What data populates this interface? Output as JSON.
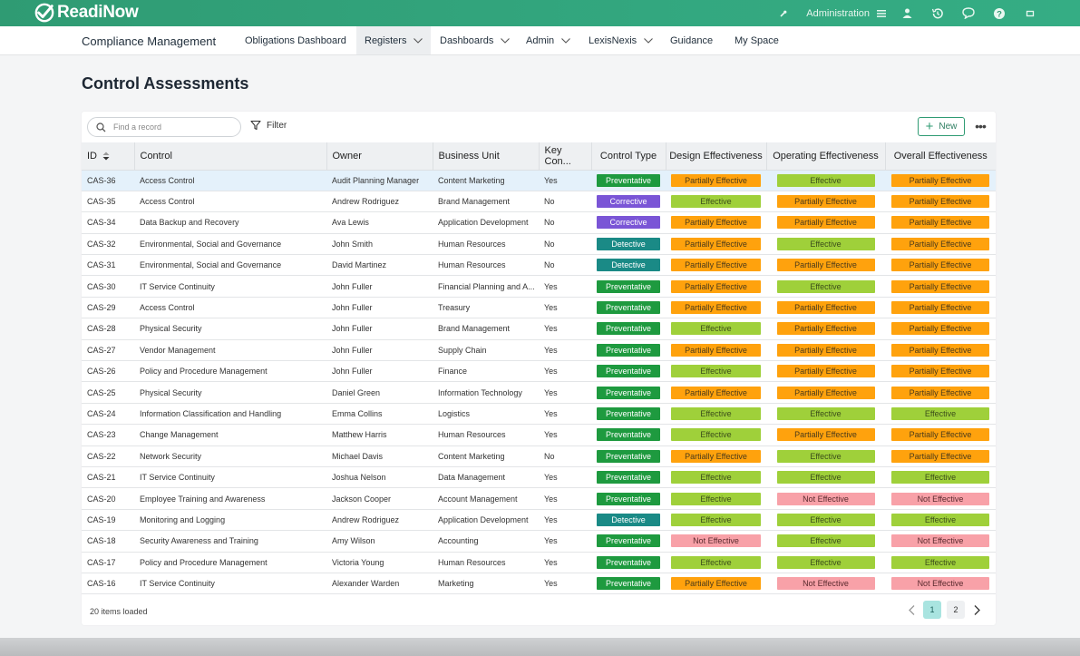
{
  "app": {
    "logo_text": "ReadiNow",
    "admin_label": "Administration",
    "colors": {
      "brand": "#2f9b73",
      "preventative": "#1e9a3f",
      "corrective": "#7a55d6",
      "detective": "#1a8a86",
      "partially_effective": "#ffa20d",
      "effective": "#9fd03a",
      "not_effective": "#f8a1a8"
    }
  },
  "nav": {
    "app_title": "Compliance Management",
    "items": [
      {
        "label": "Obligations Dashboard",
        "dropdown": false
      },
      {
        "label": "Registers",
        "dropdown": true,
        "active": true
      },
      {
        "label": "Dashboards",
        "dropdown": true
      },
      {
        "label": "Admin",
        "dropdown": true
      },
      {
        "label": "LexisNexis",
        "dropdown": true
      },
      {
        "label": "Guidance",
        "dropdown": false
      },
      {
        "label": "My Space",
        "dropdown": false
      }
    ]
  },
  "page": {
    "title": "Control Assessments",
    "search_placeholder": "Find a record",
    "filter_label": "Filter",
    "new_label": "New",
    "more_label": "•••",
    "footer_text": "20 items loaded",
    "pages": [
      "1",
      "2"
    ],
    "current_page": "1"
  },
  "table": {
    "columns": [
      "ID",
      "Control",
      "Owner",
      "Business Unit",
      "Key Con...",
      "Control Type",
      "Design Effectiveness",
      "Operating Effectiveness",
      "Overall Effectiveness"
    ],
    "rows": [
      [
        "CAS-36",
        "Access Control",
        "Audit Planning Manager",
        "Content Marketing",
        "Yes",
        "Preventative",
        "Partially Effective",
        "Effective",
        "Partially Effective"
      ],
      [
        "CAS-35",
        "Access Control",
        "Andrew Rodriguez",
        "Brand Management",
        "No",
        "Corrective",
        "Effective",
        "Partially Effective",
        "Partially Effective"
      ],
      [
        "CAS-34",
        "Data Backup and Recovery",
        "Ava Lewis",
        "Application Development",
        "No",
        "Corrective",
        "Partially Effective",
        "Partially Effective",
        "Partially Effective"
      ],
      [
        "CAS-32",
        "Environmental, Social and Governance",
        "John Smith",
        "Human Resources",
        "No",
        "Detective",
        "Partially Effective",
        "Effective",
        "Partially Effective"
      ],
      [
        "CAS-31",
        "Environmental, Social and Governance",
        "David Martinez",
        "Human Resources",
        "No",
        "Detective",
        "Partially Effective",
        "Partially Effective",
        "Partially Effective"
      ],
      [
        "CAS-30",
        "IT Service Continuity",
        "John Fuller",
        "Financial Planning and A...",
        "Yes",
        "Preventative",
        "Partially Effective",
        "Effective",
        "Partially Effective"
      ],
      [
        "CAS-29",
        "Access Control",
        "John Fuller",
        "Treasury",
        "Yes",
        "Preventative",
        "Partially Effective",
        "Partially Effective",
        "Partially Effective"
      ],
      [
        "CAS-28",
        "Physical Security",
        "John Fuller",
        "Brand Management",
        "Yes",
        "Preventative",
        "Effective",
        "Partially Effective",
        "Partially Effective"
      ],
      [
        "CAS-27",
        "Vendor Management",
        "John Fuller",
        "Supply Chain",
        "Yes",
        "Preventative",
        "Partially Effective",
        "Partially Effective",
        "Partially Effective"
      ],
      [
        "CAS-26",
        "Policy and Procedure Management",
        "John Fuller",
        "Finance",
        "Yes",
        "Preventative",
        "Effective",
        "Partially Effective",
        "Partially Effective"
      ],
      [
        "CAS-25",
        "Physical Security",
        "Daniel Green",
        "Information Technology",
        "Yes",
        "Preventative",
        "Partially Effective",
        "Partially Effective",
        "Partially Effective"
      ],
      [
        "CAS-24",
        "Information Classification and Handling",
        "Emma Collins",
        "Logistics",
        "Yes",
        "Preventative",
        "Effective",
        "Effective",
        "Effective"
      ],
      [
        "CAS-23",
        "Change Management",
        "Matthew Harris",
        "Human Resources",
        "Yes",
        "Preventative",
        "Effective",
        "Partially Effective",
        "Partially Effective"
      ],
      [
        "CAS-22",
        "Network Security",
        "Michael Davis",
        "Content Marketing",
        "No",
        "Preventative",
        "Partially Effective",
        "Effective",
        "Partially Effective"
      ],
      [
        "CAS-21",
        "IT Service Continuity",
        "Joshua Nelson",
        "Data Management",
        "Yes",
        "Preventative",
        "Effective",
        "Effective",
        "Effective"
      ],
      [
        "CAS-20",
        "Employee Training and Awareness",
        "Jackson Cooper",
        "Account Management",
        "Yes",
        "Preventative",
        "Effective",
        "Not Effective",
        "Not Effective"
      ],
      [
        "CAS-19",
        "Monitoring and Logging",
        "Andrew Rodriguez",
        "Application Development",
        "Yes",
        "Detective",
        "Effective",
        "Effective",
        "Effective"
      ],
      [
        "CAS-18",
        "Security Awareness and Training",
        "Amy Wilson",
        "Accounting",
        "Yes",
        "Preventative",
        "Not Effective",
        "Effective",
        "Not Effective"
      ],
      [
        "CAS-17",
        "Policy and Procedure Management",
        "Victoria Young",
        "Human Resources",
        "Yes",
        "Preventative",
        "Effective",
        "Effective",
        "Effective"
      ],
      [
        "CAS-16",
        "IT Service Continuity",
        "Alexander Warden",
        "Marketing",
        "Yes",
        "Preventative",
        "Partially Effective",
        "Not Effective",
        "Not Effective"
      ]
    ]
  }
}
